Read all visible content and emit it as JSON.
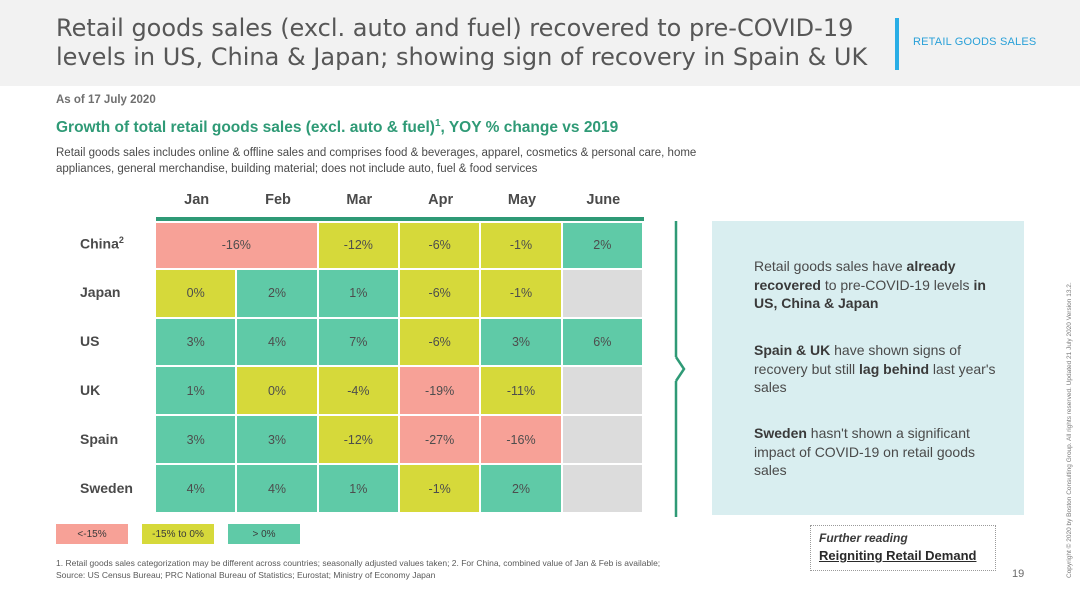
{
  "header": {
    "headline": "Retail goods sales (excl. auto and fuel) recovered to pre-COVID-19 levels in US, China & Japan; showing sign of recovery in Spain & UK",
    "section_tag": "RETAIL GOODS SALES"
  },
  "as_of": "As of 17 July 2020",
  "chart_title": "Growth of total retail goods sales (excl. auto & fuel)",
  "chart_title_sup": "1",
  "chart_title_suffix": ", YOY % change vs 2019",
  "subtitle": "Retail goods sales includes online & offline sales and comprises food & beverages, apparel, cosmetics & personal care, home appliances, general merchandise, building material; does not include auto, fuel & food services",
  "colors": {
    "below_minus_15": "#f7a197",
    "minus_15_to_0": "#d6d93a",
    "above_0": "#5fcaa7",
    "no_data": "#dcdcdc",
    "accent_green": "#2f9a76",
    "accent_blue": "#29aee6"
  },
  "chart_data": {
    "type": "heatmap",
    "title": "Growth of total retail goods sales (excl. auto & fuel)1, YOY % change vs 2019",
    "columns": [
      "Jan",
      "Feb",
      "Mar",
      "Apr",
      "May",
      "June"
    ],
    "rows": [
      {
        "name": "China",
        "sup": "2",
        "cells": [
          {
            "label": "-16%",
            "value": -16,
            "span": 2,
            "cat": "below_minus_15"
          },
          {
            "label": "-12%",
            "value": -12,
            "cat": "minus_15_to_0"
          },
          {
            "label": "-6%",
            "value": -6,
            "cat": "minus_15_to_0"
          },
          {
            "label": "-1%",
            "value": -1,
            "cat": "minus_15_to_0"
          },
          {
            "label": "2%",
            "value": 2,
            "cat": "above_0"
          }
        ]
      },
      {
        "name": "Japan",
        "cells": [
          {
            "label": "0%",
            "value": 0,
            "cat": "minus_15_to_0"
          },
          {
            "label": "2%",
            "value": 2,
            "cat": "above_0"
          },
          {
            "label": "1%",
            "value": 1,
            "cat": "above_0"
          },
          {
            "label": "-6%",
            "value": -6,
            "cat": "minus_15_to_0"
          },
          {
            "label": "-1%",
            "value": -1,
            "cat": "minus_15_to_0"
          },
          {
            "label": "",
            "value": null,
            "cat": "no_data"
          }
        ]
      },
      {
        "name": "US",
        "cells": [
          {
            "label": "3%",
            "value": 3,
            "cat": "above_0"
          },
          {
            "label": "4%",
            "value": 4,
            "cat": "above_0"
          },
          {
            "label": "7%",
            "value": 7,
            "cat": "above_0"
          },
          {
            "label": "-6%",
            "value": -6,
            "cat": "minus_15_to_0"
          },
          {
            "label": "3%",
            "value": 3,
            "cat": "above_0"
          },
          {
            "label": "6%",
            "value": 6,
            "cat": "above_0"
          }
        ]
      },
      {
        "name": "UK",
        "cells": [
          {
            "label": "1%",
            "value": 1,
            "cat": "above_0"
          },
          {
            "label": "0%",
            "value": 0,
            "cat": "minus_15_to_0"
          },
          {
            "label": "-4%",
            "value": -4,
            "cat": "minus_15_to_0"
          },
          {
            "label": "-19%",
            "value": -19,
            "cat": "below_minus_15"
          },
          {
            "label": "-11%",
            "value": -11,
            "cat": "minus_15_to_0"
          },
          {
            "label": "",
            "value": null,
            "cat": "no_data"
          }
        ]
      },
      {
        "name": "Spain",
        "cells": [
          {
            "label": "3%",
            "value": 3,
            "cat": "above_0"
          },
          {
            "label": "3%",
            "value": 3,
            "cat": "above_0"
          },
          {
            "label": "-12%",
            "value": -12,
            "cat": "minus_15_to_0"
          },
          {
            "label": "-27%",
            "value": -27,
            "cat": "below_minus_15"
          },
          {
            "label": "-16%",
            "value": -16,
            "cat": "below_minus_15"
          },
          {
            "label": "",
            "value": null,
            "cat": "no_data"
          }
        ]
      },
      {
        "name": "Sweden",
        "cells": [
          {
            "label": "4%",
            "value": 4,
            "cat": "above_0"
          },
          {
            "label": "4%",
            "value": 4,
            "cat": "above_0"
          },
          {
            "label": "1%",
            "value": 1,
            "cat": "above_0"
          },
          {
            "label": "-1%",
            "value": -1,
            "cat": "minus_15_to_0"
          },
          {
            "label": "2%",
            "value": 2,
            "cat": "above_0"
          },
          {
            "label": "",
            "value": null,
            "cat": "no_data"
          }
        ]
      }
    ],
    "legend": [
      {
        "label": "<-15%",
        "cat": "below_minus_15"
      },
      {
        "label": "-15% to 0%",
        "cat": "minus_15_to_0"
      },
      {
        "label": "> 0%",
        "cat": "above_0"
      }
    ]
  },
  "insights": [
    [
      {
        "t": "Retail goods sales have "
      },
      {
        "t": "already recovered",
        "b": true
      },
      {
        "t": " to pre-COVID-19 levels "
      },
      {
        "t": "in US, China & Japan",
        "b": true
      }
    ],
    [
      {
        "t": "Spain & UK",
        "b": true
      },
      {
        "t": " have shown signs of recovery but still "
      },
      {
        "t": "lag behind",
        "b": true
      },
      {
        "t": " last year's sales"
      }
    ],
    [
      {
        "t": "Sweden",
        "b": true
      },
      {
        "t": " hasn't shown a significant impact of COVID-19 on retail goods sales"
      }
    ]
  ],
  "footnote_1": "1. Retail goods sales categorization may be different across countries; seasonally adjusted values taken;  2. For China, combined value of Jan & Feb is available;",
  "footnote_2": "Source: US Census Bureau; PRC National Bureau of Statistics; Eurostat; Ministry of Economy Japan",
  "further_reading": {
    "label": "Further reading",
    "link": "Reigniting Retail Demand"
  },
  "page_number": "19",
  "copyright": "Copyright © 2020 by Boston Consulting Group. All rights reserved. Updated 21 July 2020 Version 13.2."
}
